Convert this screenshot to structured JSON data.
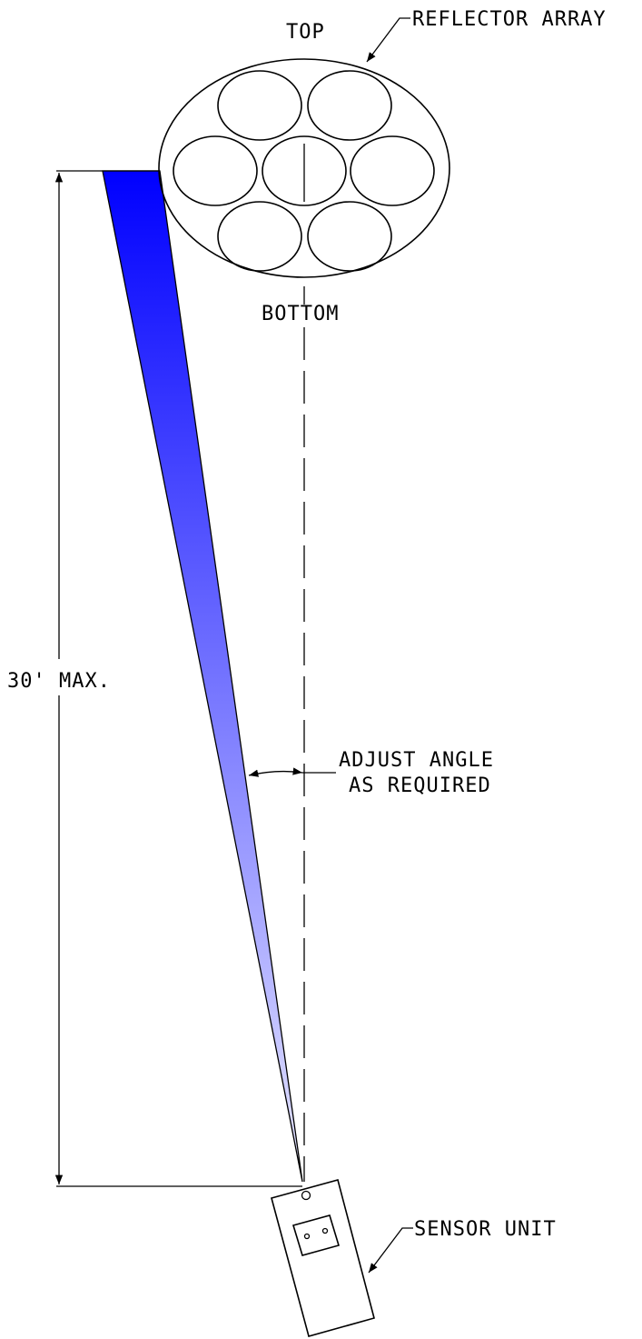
{
  "labels": {
    "top": "TOP",
    "bottom": "BOTTOM",
    "reflector_array": "REFLECTOR ARRAY",
    "distance": "30' MAX.",
    "adjust_line1": "ADJUST ANGLE",
    "adjust_line2": "AS REQUIRED",
    "sensor_unit": "SENSOR UNIT"
  },
  "colors": {
    "beam_start": "#0000ff",
    "beam_end": "#e6e6ff",
    "line": "#000000",
    "background": "#ffffff"
  }
}
